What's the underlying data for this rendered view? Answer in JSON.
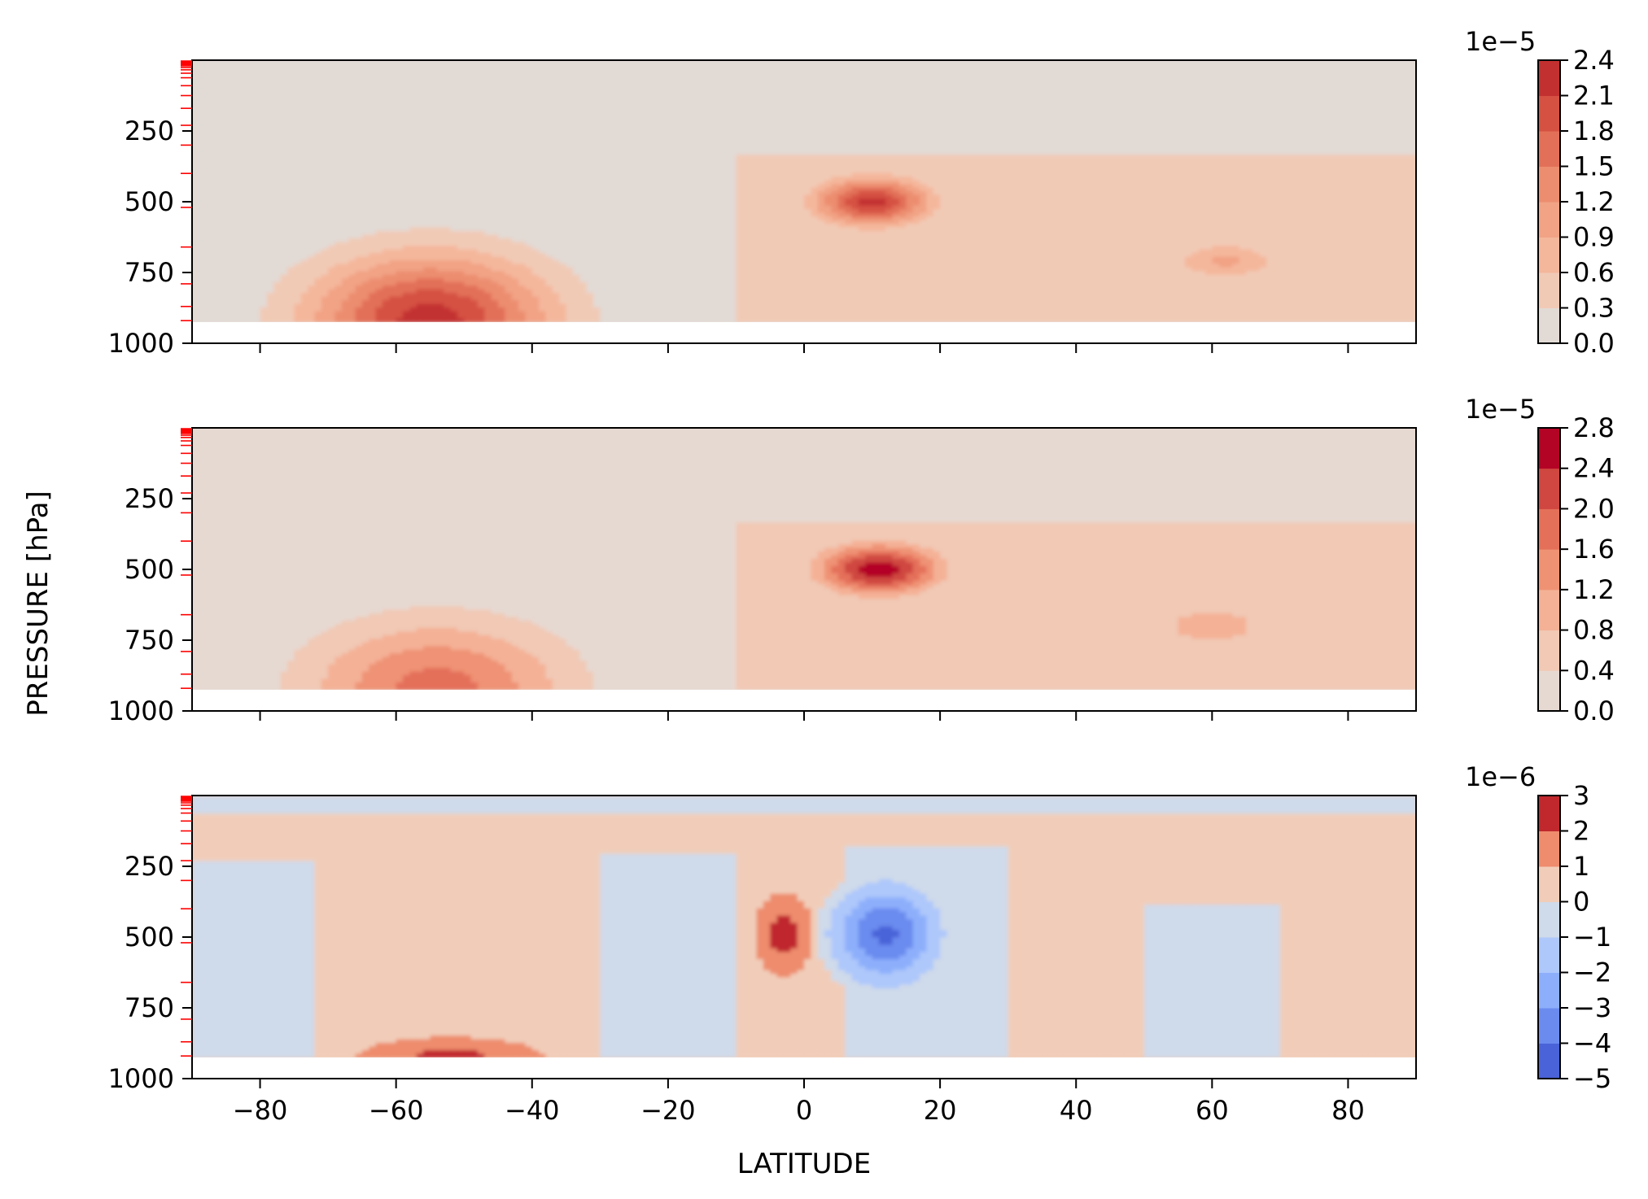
{
  "figure": {
    "ylabel": "PRESSURE [hPa]",
    "xlabel": "LATITUDE"
  },
  "chart_data": [
    {
      "type": "heatmap",
      "panel": "top",
      "x_ticks": [
        -80,
        -60,
        -40,
        -20,
        0,
        20,
        40,
        60,
        80
      ],
      "x_tick_labels": [
        "",
        "",
        "",
        "",
        "",
        "",
        "",
        "",
        ""
      ],
      "xlim": [
        -90,
        90
      ],
      "y_ticks": [
        250,
        500,
        750,
        1000
      ],
      "y_tick_labels": [
        "250",
        "500",
        "750",
        "1000"
      ],
      "ylim": [
        1000,
        0
      ],
      "data_bottom_pressure": 925,
      "colorbar": {
        "levels": [
          0.0,
          0.3,
          0.6,
          0.9,
          1.2,
          1.5,
          1.8,
          2.1,
          2.4
        ],
        "labels": [
          "0.0",
          "0.3",
          "0.6",
          "0.9",
          "1.2",
          "1.5",
          "1.8",
          "2.1",
          "2.4"
        ],
        "colors": [
          "#e2dad5",
          "#f1cab6",
          "#f4b79c",
          "#f2a385",
          "#ec8d6f",
          "#e27058",
          "#d55142",
          "#c33030"
        ],
        "multiplier": "1e−5"
      },
      "blobs": [
        {
          "lat": -55,
          "p": 920,
          "lat_r": 22,
          "p_r": 290,
          "amp": 2.25
        },
        {
          "lat": 10,
          "p": 500,
          "lat_r": 11,
          "p_r": 110,
          "amp": 2.2
        },
        {
          "lat": 62,
          "p": 710,
          "lat_r": 11,
          "p_r": 95,
          "amp": 0.95
        }
      ],
      "background_regions": [
        {
          "lat_min": -10,
          "lat_max": 90,
          "p_min": 330,
          "p_max": 925,
          "value": 0.55
        }
      ]
    },
    {
      "type": "heatmap",
      "panel": "middle",
      "x_ticks": [
        -80,
        -60,
        -40,
        -20,
        0,
        20,
        40,
        60,
        80
      ],
      "x_tick_labels": [
        "",
        "",
        "",
        "",
        "",
        "",
        "",
        "",
        ""
      ],
      "xlim": [
        -90,
        90
      ],
      "y_ticks": [
        250,
        500,
        750,
        1000
      ],
      "y_tick_labels": [
        "250",
        "500",
        "750",
        "1000"
      ],
      "ylim": [
        1000,
        0
      ],
      "data_bottom_pressure": 925,
      "colorbar": {
        "levels": [
          0.0,
          0.4,
          0.8,
          1.2,
          1.6,
          2.0,
          2.4,
          2.8
        ],
        "labels": [
          "0.0",
          "0.4",
          "0.8",
          "1.2",
          "1.6",
          "2.0",
          "2.4",
          "2.8"
        ],
        "colors": [
          "#e6d9d2",
          "#f1c9b5",
          "#f4b196",
          "#ef9274",
          "#e4705a",
          "#cf4740",
          "#b40426"
        ],
        "multiplier": "1e−5"
      },
      "blobs": [
        {
          "lat": -54,
          "p": 920,
          "lat_r": 24,
          "p_r": 300,
          "amp": 1.75
        },
        {
          "lat": 11,
          "p": 500,
          "lat_r": 12,
          "p_r": 120,
          "amp": 2.6
        },
        {
          "lat": 60,
          "p": 700,
          "lat_r": 12,
          "p_r": 110,
          "amp": 1.1
        }
      ],
      "background_regions": [
        {
          "lat_min": -10,
          "lat_max": 90,
          "p_min": 330,
          "p_max": 925,
          "value": 0.55
        }
      ]
    },
    {
      "type": "heatmap",
      "panel": "bottom",
      "x_ticks": [
        -80,
        -60,
        -40,
        -20,
        0,
        20,
        40,
        60,
        80
      ],
      "x_tick_labels": [
        "−80",
        "−60",
        "−40",
        "−20",
        "0",
        "20",
        "40",
        "60",
        "80"
      ],
      "xlim": [
        -90,
        90
      ],
      "y_ticks": [
        250,
        500,
        750,
        1000
      ],
      "y_tick_labels": [
        "250",
        "500",
        "750",
        "1000"
      ],
      "ylim": [
        1000,
        0
      ],
      "data_bottom_pressure": 925,
      "colorbar": {
        "levels": [
          -5,
          -4,
          -3,
          -2,
          -1,
          0,
          1,
          2,
          3
        ],
        "labels": [
          "−5",
          "−4",
          "−3",
          "−2",
          "−1",
          "0",
          "1",
          "2",
          "3"
        ],
        "colors": [
          "#4a63d8",
          "#6b8bef",
          "#8daffb",
          "#aec8fb",
          "#cfdaea",
          "#f1cdb9",
          "#ee8c6d",
          "#c0282e"
        ],
        "multiplier": "1e−6"
      },
      "regions": [
        {
          "lat_min": -90,
          "lat_max": -72,
          "p_min": 230,
          "p_max": 925,
          "value": -0.5
        },
        {
          "lat_min": -30,
          "lat_max": -10,
          "p_min": 200,
          "p_max": 925,
          "value": -0.5
        },
        {
          "lat_min": 6,
          "lat_max": 30,
          "p_min": 180,
          "p_max": 925,
          "value": -0.5
        },
        {
          "lat_min": 50,
          "lat_max": 70,
          "p_min": 380,
          "p_max": 925,
          "value": -0.5
        },
        {
          "lat_min": -90,
          "lat_max": 90,
          "p_min": 0,
          "p_max": 60,
          "value": -0.5
        }
      ],
      "blobs": [
        {
          "lat": -52,
          "p": 925,
          "lat_r": 19,
          "p_r": 100,
          "amp": 2.3
        },
        {
          "lat": -3,
          "p": 490,
          "lat_r": 6,
          "p_r": 200,
          "amp": 2.4
        },
        {
          "lat": 12,
          "p": 490,
          "lat_r": 9,
          "p_r": 200,
          "amp": -4.2
        }
      ]
    }
  ]
}
